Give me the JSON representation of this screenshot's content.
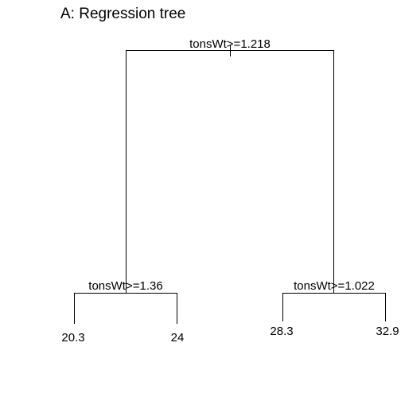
{
  "title": "A: Regression tree",
  "tree": {
    "root_split": "tonsWt>=1.218",
    "left_split": "tonsWt>=1.36",
    "right_split": "tonsWt>=1.022",
    "leaves": [
      "20.3",
      "24",
      "28.3",
      "32.9"
    ]
  },
  "colors": {
    "line": "#000000",
    "text": "#000000",
    "background": "#ffffff"
  }
}
